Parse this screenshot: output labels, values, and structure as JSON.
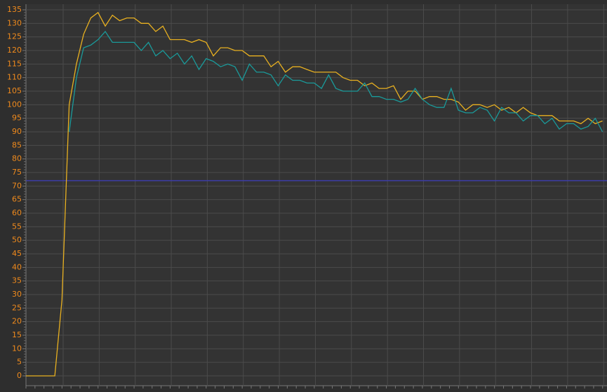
{
  "chart_data": {
    "type": "line",
    "ylim": [
      0,
      135
    ],
    "yticks": [
      0,
      5,
      10,
      15,
      20,
      25,
      30,
      35,
      40,
      45,
      50,
      55,
      60,
      65,
      70,
      75,
      80,
      85,
      90,
      95,
      100,
      105,
      110,
      115,
      120,
      125,
      130,
      135
    ],
    "grid": true,
    "reference_line": {
      "value": 72,
      "color": "#3c3ca8"
    },
    "series": [
      {
        "color": "#e8b020",
        "values": [
          0,
          0,
          0,
          0,
          0,
          28,
          100,
          115,
          126,
          132,
          134,
          129,
          133,
          131,
          132,
          132,
          130,
          130,
          127,
          129,
          124,
          124,
          124,
          123,
          124,
          123,
          118,
          121,
          121,
          120,
          120,
          118,
          118,
          118,
          114,
          116,
          112,
          114,
          114,
          113,
          112,
          112,
          112,
          112,
          110,
          109,
          109,
          107,
          108,
          106,
          106,
          107,
          102,
          105,
          105,
          102,
          103,
          103,
          102,
          102,
          101,
          98,
          100,
          100,
          99,
          100,
          98,
          99,
          97,
          99,
          97,
          96,
          96,
          96,
          94,
          94,
          94,
          93,
          95,
          93,
          94
        ]
      },
      {
        "color": "#1a9a9a",
        "values": [
          null,
          null,
          null,
          null,
          null,
          null,
          90,
          110,
          121,
          122,
          124,
          127,
          123,
          123,
          123,
          123,
          120,
          123,
          118,
          120,
          117,
          119,
          115,
          118,
          113,
          117,
          116,
          114,
          115,
          114,
          109,
          115,
          112,
          112,
          111,
          107,
          111,
          109,
          109,
          108,
          108,
          106,
          111,
          106,
          105,
          105,
          105,
          108,
          103,
          103,
          102,
          102,
          101,
          102,
          106,
          102,
          100,
          99,
          99,
          106,
          98,
          97,
          97,
          99,
          98,
          94,
          99,
          97,
          97,
          94,
          96,
          96,
          93,
          95,
          91,
          93,
          93,
          91,
          92,
          95,
          90
        ]
      }
    ]
  }
}
